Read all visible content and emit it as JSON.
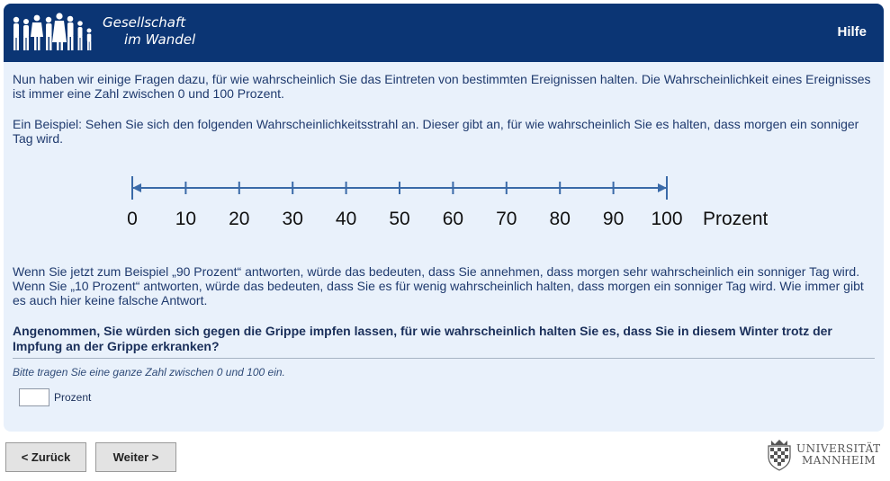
{
  "header": {
    "brand_line1": "Gesellschaft",
    "brand_line2": "im Wandel",
    "help_label": "Hilfe",
    "logo_icon": "people-silhouettes-icon"
  },
  "intro": {
    "paragraph1": "Nun haben wir einige Fragen dazu, für wie wahrscheinlich Sie das Eintreten von bestimmten Ereignissen halten. Die Wahrscheinlichkeit eines Ereignisses ist immer eine Zahl zwischen 0 und 100 Prozent.",
    "paragraph2": "Ein Beispiel: Sehen Sie sich den folgenden Wahrscheinlichkeitsstrahl an. Dieser gibt an, für wie wahrscheinlich Sie es halten, dass morgen ein sonniger Tag wird.",
    "paragraph3": "Wenn Sie jetzt zum Beispiel „90 Prozent“ antworten, würde das bedeuten, dass Sie annehmen, dass morgen sehr wahrscheinlich ein sonniger Tag wird. Wenn Sie „10 Prozent“ antworten, würde das bedeuten, dass Sie es für wenig wahrscheinlich halten, dass morgen ein sonniger Tag wird. Wie immer gibt es auch hier keine falsche Antwort."
  },
  "scale": {
    "ticks": [
      "0",
      "10",
      "20",
      "30",
      "40",
      "50",
      "60",
      "70",
      "80",
      "90",
      "100"
    ],
    "unit": "Prozent",
    "line_color": "#3a6aa8"
  },
  "question": {
    "text": "Angenommen, Sie würden sich gegen die Grippe impfen lassen, für wie wahrscheinlich halten Sie es, dass Sie in diesem Winter trotz der Impfung an der Grippe erkranken?",
    "hint": "Bitte tragen Sie eine ganze Zahl zwischen 0 und 100 ein.",
    "input_value": "",
    "unit": "Prozent"
  },
  "nav": {
    "back_label": "< Zurück",
    "next_label": "Weiter >"
  },
  "footer": {
    "uni_line1": "UNIVERSITÄT",
    "uni_line2": "MANNHEIM",
    "crest_icon": "university-crest-icon"
  },
  "colors": {
    "header_bg": "#0b3574",
    "panel_bg": "#e9f1fb",
    "text": "#1f3a6e"
  }
}
